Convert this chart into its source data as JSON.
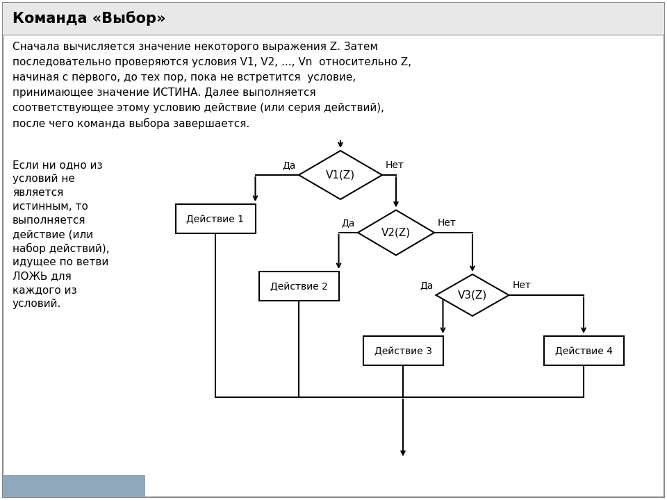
{
  "title": "Команда «Выбор»",
  "desc_line1": "Сначала вычисляется значение некоторого выражения Z. Затем",
  "desc_line2": "последовательно проверяются условия V1, V2, ..., Vn  относительно Z,",
  "desc_line3": "начиная с первого, до тех пор, пока не встретится  условие,",
  "desc_line4": "принимающее значение ИСТИНА. Далее выполняется",
  "desc_line5": "соответствующее этому условию действие (или серия действий),",
  "desc_line6": "после чего команда выбора завершается.",
  "left_line1": "Если ни одно из",
  "left_line2": "условий не",
  "left_line3": "является",
  "left_line4": "истинным, то",
  "left_line5": "выполняется",
  "left_line6": "действие (или",
  "left_line7": "набор действий),",
  "left_line8": "идущее по ветви",
  "left_line9": "ЛОЖЬ для",
  "left_line10": "каждого из",
  "left_line11": "условий.",
  "bg_color": "#ffffff",
  "title_bg": "#e8e8e8",
  "bottom_bar_color": "#8fa8bc",
  "text_color": "#000000",
  "yes_label": "Да",
  "no_label": "Нет",
  "d1_label": "V1(Z)",
  "d2_label": "V2(Z)",
  "d3_label": "V3(Z)",
  "b1_label": "Действие 1",
  "b2_label": "Действие 2",
  "b3_label": "Действие 3",
  "b4_label": "Действие 4"
}
